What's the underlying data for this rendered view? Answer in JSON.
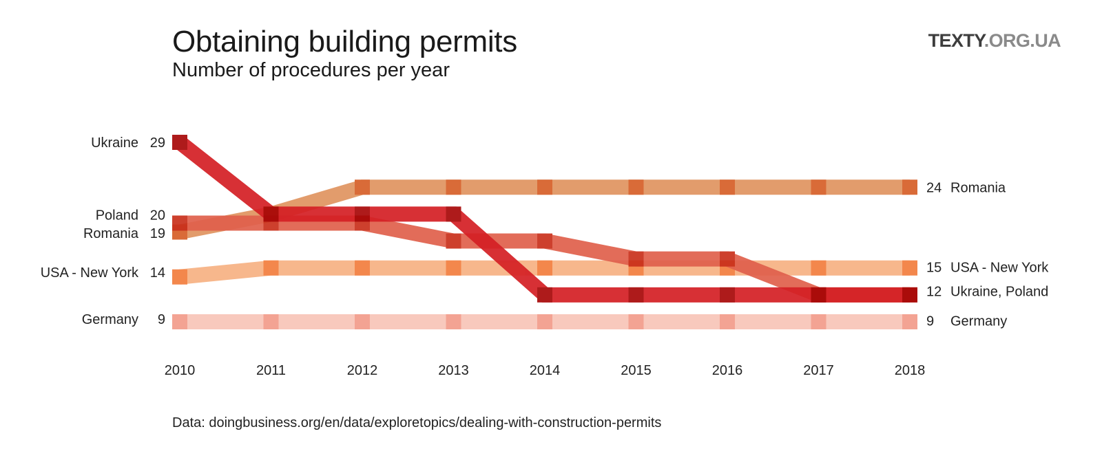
{
  "header": {
    "title": "Obtaining building permits",
    "subtitle": "Number of procedures per year",
    "brand_main": "TEXTY",
    "brand_domain": ".ORG.UA"
  },
  "footer": {
    "source": "Data: doingbusiness.org/en/data/exploretopics/dealing-with-construction-permits"
  },
  "chart_data": {
    "type": "line",
    "title": "Obtaining building permits",
    "subtitle": "Number of procedures per year",
    "x": [
      2010,
      2011,
      2012,
      2013,
      2014,
      2015,
      2016,
      2017,
      2018
    ],
    "x_tick_labels": [
      "2010",
      "2011",
      "2012",
      "2013",
      "2014",
      "2015",
      "2016",
      "2017",
      "2018"
    ],
    "ylim": [
      7,
      31
    ],
    "grid": false,
    "legend": "direct labels at line ends",
    "series": [
      {
        "name": "Germany",
        "values": [
          9,
          9,
          9,
          9,
          9,
          9,
          9,
          9,
          9
        ],
        "color": "#f8c5b8",
        "marker_color": "#f39c8a"
      },
      {
        "name": "USA - New York",
        "values": [
          14,
          15,
          15,
          15,
          15,
          15,
          15,
          15,
          15
        ],
        "color": "#f7b183",
        "marker_color": "#f27d3d"
      },
      {
        "name": "Romania",
        "values": [
          19,
          21,
          24,
          24,
          24,
          24,
          24,
          24,
          24
        ],
        "color": "#e09460",
        "marker_color": "#d65f28"
      },
      {
        "name": "Poland",
        "values": [
          20,
          20,
          20,
          18,
          18,
          16,
          16,
          12,
          12
        ],
        "color": "#e0604c",
        "marker_color": "#c9301c"
      },
      {
        "name": "Ukraine",
        "values": [
          29,
          21,
          21,
          21,
          12,
          12,
          12,
          12,
          12
        ],
        "color": "#d41f24",
        "marker_color": "#a80808"
      }
    ],
    "start_labels": [
      {
        "name": "Ukraine",
        "value": "29"
      },
      {
        "name": "Poland",
        "value": "20"
      },
      {
        "name": "Romania",
        "value": "19"
      },
      {
        "name": "USA - New York",
        "value": "14"
      },
      {
        "name": "Germany",
        "value": "9"
      }
    ],
    "end_labels": [
      {
        "name": "Romania",
        "value": "24"
      },
      {
        "name": "USA - New York",
        "value": "15"
      },
      {
        "name": "Ukraine, Poland",
        "value": "12"
      },
      {
        "name": "Germany",
        "value": "9"
      }
    ]
  }
}
